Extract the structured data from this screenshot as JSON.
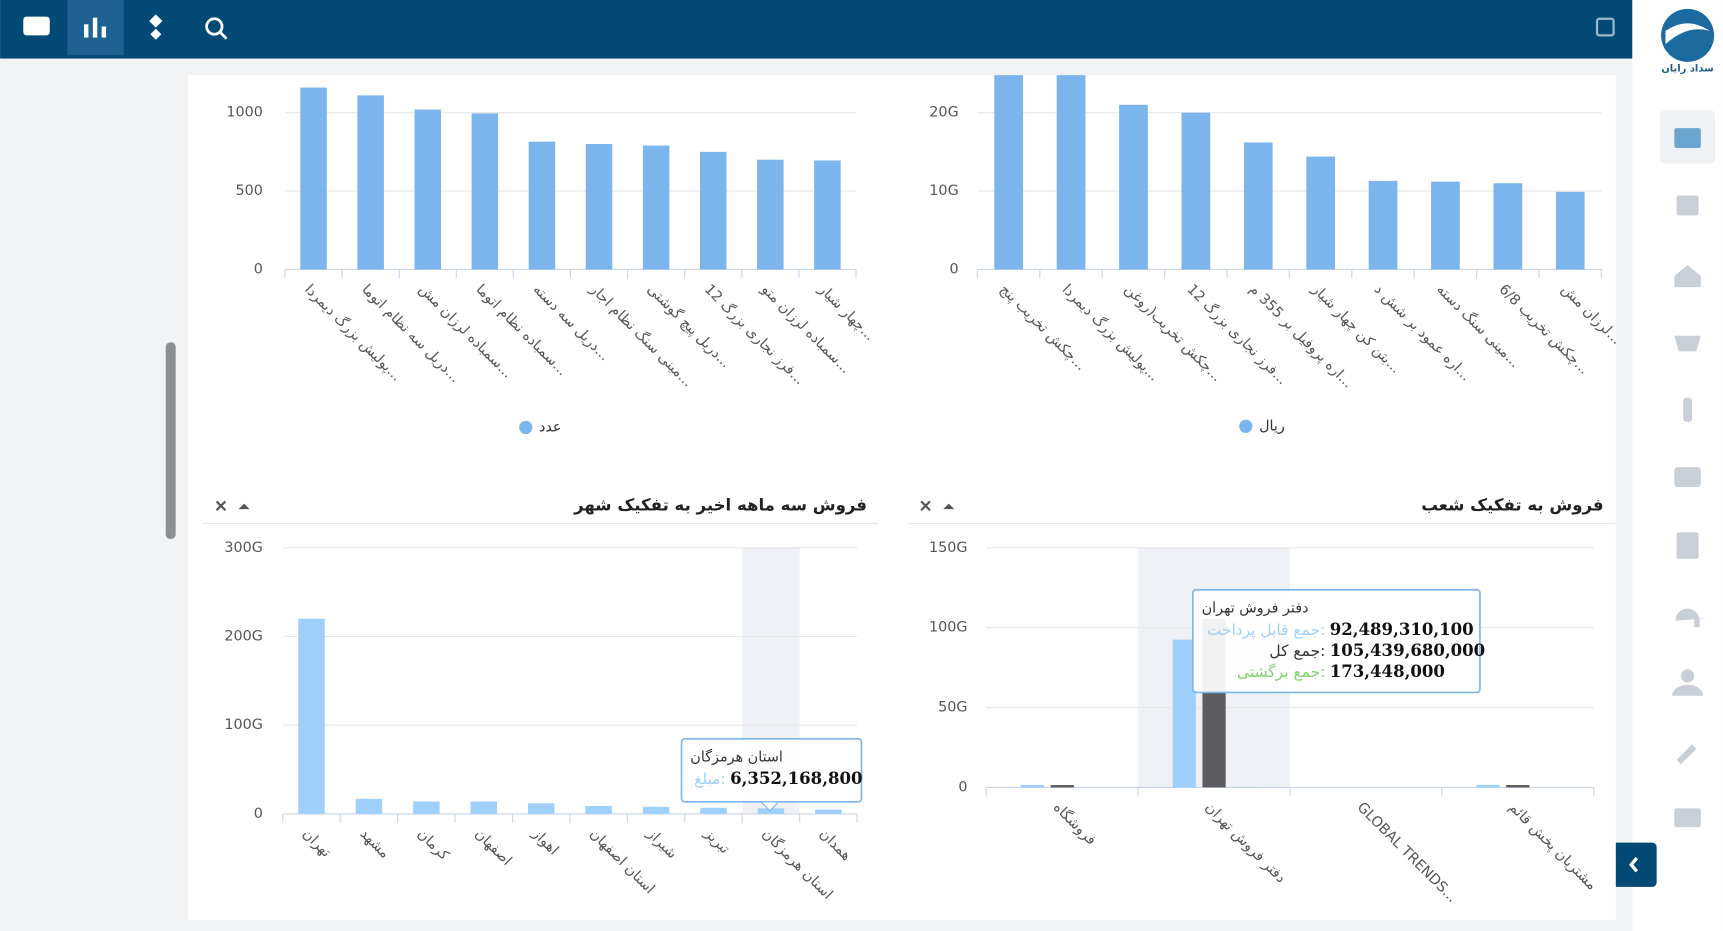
{
  "sidebar": {
    "logo_text": "سداد رایان"
  },
  "chart_data": [
    {
      "type": "bar",
      "ylim": [
        0,
        1250
      ],
      "yticks": [
        0,
        500,
        1000
      ],
      "categories": [
        "پولیش بزرگ دیمردا...",
        "دریل سه نظام اتوما...",
        "سمباده لرزان مش...",
        "سمباده نظام اتوما...",
        "دریل سه دسته...",
        "مینی سنگ نظام اجار...",
        "دریل پیچ گوشتی...",
        "فرز نجاری بزرگ 12...",
        "سمباده لرزان متو...",
        "چهار شیار..."
      ],
      "series": [
        {
          "name": "عدد",
          "color": "#7cb5ec",
          "values": [
            1160,
            1110,
            1020,
            995,
            815,
            800,
            790,
            750,
            700,
            695
          ]
        }
      ]
    },
    {
      "type": "bar",
      "ylim": [
        0,
        25000000000
      ],
      "yticks": [
        0,
        {
          "value": 10000000000,
          "label": "10G"
        },
        {
          "value": 20000000000,
          "label": "20G"
        }
      ],
      "categories": [
        "چکش تخریب پنج...",
        "پولیش بزرگ دیمردا...",
        "چکش تخریب(روغن...",
        "فرز نجاری بزرگ 12...",
        "اره پروفیل بر 355 م...",
        "بتن کن چهار شیار...",
        "اره عمود بر شش د...",
        "مینی سنگ دسته...",
        "چکش تخریب 6/8...",
        "لرزان مش..."
      ],
      "series": [
        {
          "name": "ریال",
          "color": "#7cb5ec",
          "values": [
            25000000000,
            25000000000,
            21000000000,
            20000000000,
            16200000000,
            14400000000,
            11300000000,
            11200000000,
            11000000000,
            9900000000
          ]
        }
      ]
    },
    {
      "type": "bar",
      "title": "فروش سه ماهه اخیر به تفکیک شهر",
      "ylim": [
        0,
        300000000000
      ],
      "yticks": [
        0,
        {
          "value": 100000000000,
          "label": "100G"
        },
        {
          "value": 200000000000,
          "label": "200G"
        },
        {
          "value": 300000000000,
          "label": "300G"
        }
      ],
      "categories": [
        "تهران",
        "مشهد",
        "کرمان",
        "اصفهان",
        "اهواز",
        "استان اصفهان",
        "شیراز",
        "تبریز",
        "استان هرمزگان",
        "همدان"
      ],
      "series": [
        {
          "color": "#9fd0fb",
          "values": [
            220000000000,
            17000000000,
            14000000000,
            14000000000,
            12000000000,
            9000000000,
            8000000000,
            7000000000,
            6352168800,
            5000000000
          ],
          "value_labels": [
            null,
            null,
            null,
            null,
            null,
            null,
            null,
            null,
            "6,352,168,800",
            null
          ]
        }
      ],
      "tooltip": {
        "labels": [
          "مبلغ:"
        ]
      }
    },
    {
      "type": "bar",
      "title": "فروش به تفکیک شعب",
      "ylim": [
        0,
        150000000000
      ],
      "yticks": [
        0,
        {
          "value": 50000000000,
          "label": "50G"
        },
        {
          "value": 100000000000,
          "label": "100G"
        },
        {
          "value": 150000000000,
          "label": "150G"
        }
      ],
      "categories": [
        "فروشگاه",
        "دفتر فروش تهران",
        "GLOBAL TRENDS...",
        "مشتریان پخش قائم"
      ],
      "series": [
        {
          "color": "#9fd0fb",
          "values": [
            1500000000,
            92489310100,
            0,
            1600000000
          ],
          "value_labels": [
            null,
            "92,489,310,100",
            null,
            null
          ]
        },
        {
          "color": "#5c5c61",
          "values": [
            1500000000,
            105439680000,
            0,
            1500000000
          ],
          "value_labels": [
            null,
            "105,439,680,000",
            null,
            null
          ]
        },
        {
          "color": "#7fd36b",
          "values": [
            0,
            173448000,
            0,
            0
          ],
          "value_labels": [
            null,
            "173,448,000",
            null,
            null
          ]
        }
      ],
      "tooltip": {
        "labels": [
          "جمع قابل پرداخت:",
          "جمع کل:",
          "جمع برگشتی:"
        ]
      }
    }
  ]
}
